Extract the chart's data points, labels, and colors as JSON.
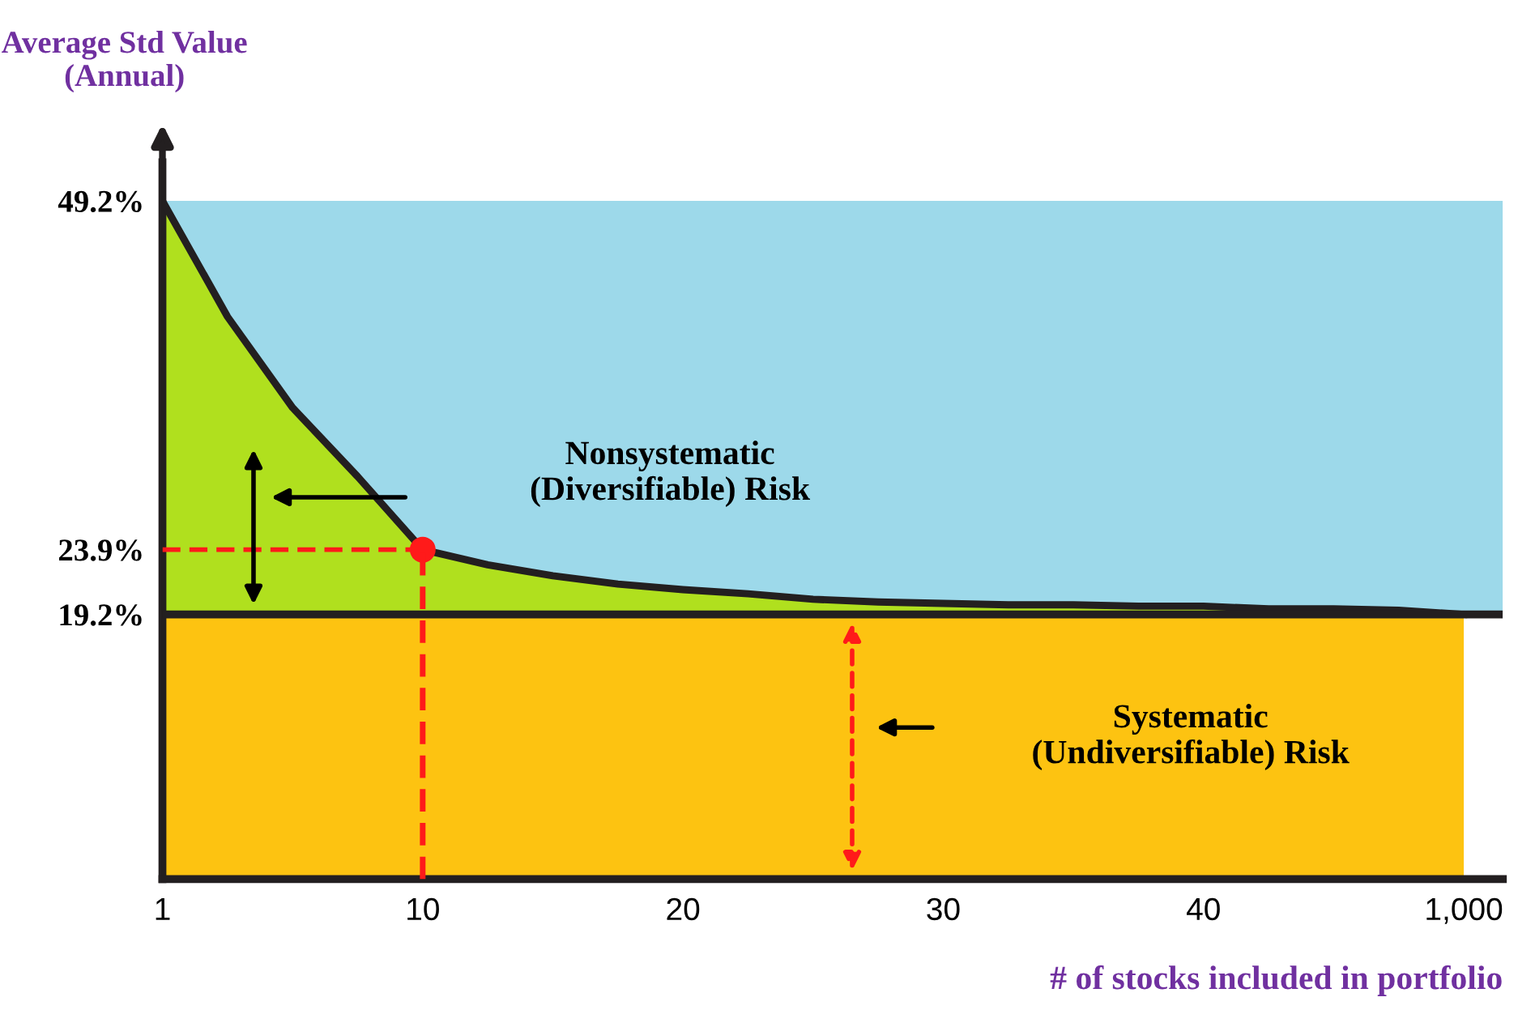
{
  "chart_data": {
    "type": "area",
    "stacked": true,
    "ylabel": "Average Std Value\n(Annual)",
    "xlabel": "# of stocks included in portfolio",
    "categories": [
      "1",
      null,
      null,
      null,
      "10",
      null,
      null,
      null,
      "20",
      null,
      null,
      null,
      "30",
      null,
      null,
      null,
      "40",
      null,
      null,
      null,
      "1,000"
    ],
    "series": [
      {
        "name": "Systematic\n(Undiversifiable) Risk",
        "color": "#fdc311",
        "values": [
          19.2,
          19.2,
          19.2,
          19.2,
          19.2,
          19.2,
          19.2,
          19.2,
          19.2,
          19.2,
          19.2,
          19.2,
          19.2,
          19.2,
          19.2,
          19.2,
          19.2,
          19.2,
          19.2,
          19.2,
          19.2
        ]
      },
      {
        "name": "Nonsystematic\n(Diversifiable) Risk",
        "color": "#b0e01e",
        "values": [
          30.0,
          21.6,
          15.0,
          10.0,
          4.7,
          3.6,
          2.8,
          2.2,
          1.8,
          1.5,
          1.1,
          0.9,
          0.8,
          0.7,
          0.7,
          0.6,
          0.6,
          0.4,
          0.4,
          0.3,
          0.0
        ]
      },
      {
        "type": "line",
        "x": [
          "10",
          "10"
        ],
        "color": "#ff1a1a",
        "values": [
          0,
          23.9
        ],
        "line_style": "dashed"
      },
      {
        "type": "scatter",
        "x": [
          "10"
        ],
        "color": "#ff1a1a",
        "values": [
          23.9
        ]
      }
    ],
    "ylim": [
      0,
      52
    ],
    "yticks": [
      {
        "value": 49.2,
        "label": "49.2%"
      },
      {
        "value": 23.9,
        "label": "23.9%"
      },
      {
        "value": 19.2,
        "label": "19.2%"
      }
    ],
    "bands": [
      {
        "axis": "y",
        "from": 19.2,
        "to": 49.2,
        "color": "#9dd9ea"
      }
    ],
    "ref_lines": [
      {
        "axis": "y",
        "value": 23.9,
        "color": "#ff1a1a",
        "line_style": "dashed"
      },
      {
        "axis": "y",
        "value": 19.2,
        "color": "#231f20",
        "line_style": "solid"
      }
    ],
    "grid": false,
    "legend": false
  }
}
